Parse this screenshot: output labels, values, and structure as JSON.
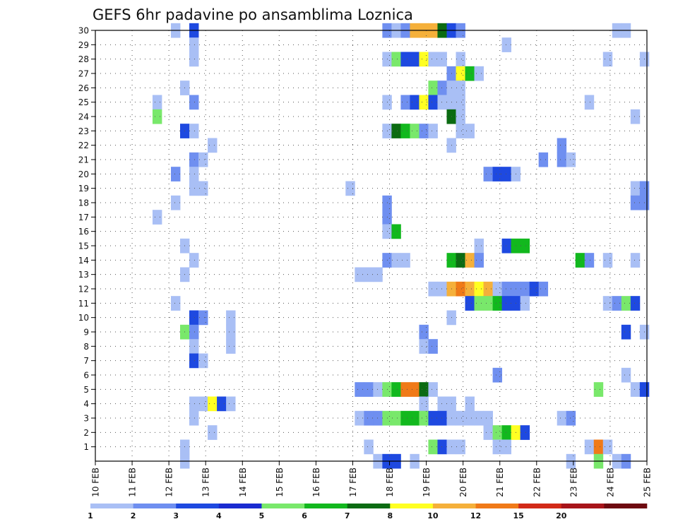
{
  "chart_data": {
    "type": "heatmap",
    "title": "GEFS 6hr padavine po ansamblima Loznica",
    "xlabel": "",
    "ylabel": "",
    "x_tick_labels": [
      "10 FEB",
      "11 FEB",
      "12 FEB",
      "13 FEB",
      "14 FEB",
      "15 FEB",
      "16 FEB",
      "17 FEB",
      "18 FEB",
      "19 FEB",
      "20 FEB",
      "21 FEB",
      "22 FEB",
      "23 FEB",
      "24 FEB",
      "25 FEB"
    ],
    "x_range_days": [
      10,
      25
    ],
    "y_tick_labels": [
      1,
      2,
      3,
      4,
      5,
      6,
      7,
      8,
      9,
      10,
      11,
      12,
      13,
      14,
      15,
      16,
      17,
      18,
      19,
      20,
      21,
      22,
      23,
      24,
      25,
      26,
      27,
      28,
      29,
      30
    ],
    "y_range": [
      0,
      30
    ],
    "grid": true,
    "grid_style": "dotted",
    "legend_position": "bottom colorbar",
    "colorbar": {
      "levels": [
        "1",
        "2",
        "3",
        "4",
        "5",
        "6",
        "7",
        "8",
        "10",
        "12",
        "15",
        "20"
      ],
      "colors": [
        "#a9bff5",
        "#6f8ff0",
        "#1e49e0",
        "#1a2bd0",
        "#79e86b",
        "#12b81e",
        "#0b6b12",
        "#ffff22",
        "#f5b03a",
        "#f07a18",
        "#d22a18",
        "#a8141a",
        "#6e0a10"
      ]
    },
    "cells": [
      [
        12.18,
        30,
        0
      ],
      [
        12.68,
        30,
        2
      ],
      [
        17.93,
        30,
        1
      ],
      [
        18.18,
        30,
        0
      ],
      [
        18.43,
        30,
        1
      ],
      [
        18.68,
        30,
        8
      ],
      [
        18.93,
        30,
        8
      ],
      [
        19.18,
        30,
        8
      ],
      [
        19.43,
        30,
        6
      ],
      [
        19.68,
        30,
        2
      ],
      [
        19.93,
        30,
        1
      ],
      [
        24.18,
        30,
        0
      ],
      [
        24.43,
        30,
        0
      ],
      [
        12.68,
        29,
        0
      ],
      [
        21.18,
        29,
        0
      ],
      [
        12.68,
        28,
        0
      ],
      [
        17.93,
        28,
        0
      ],
      [
        18.18,
        28,
        4
      ],
      [
        18.43,
        28,
        2
      ],
      [
        18.68,
        28,
        2
      ],
      [
        18.93,
        28,
        7
      ],
      [
        19.18,
        28,
        0
      ],
      [
        19.43,
        28,
        0
      ],
      [
        19.93,
        28,
        0
      ],
      [
        23.93,
        28,
        0
      ],
      [
        24.93,
        28,
        0
      ],
      [
        19.68,
        27,
        1
      ],
      [
        19.93,
        27,
        7
      ],
      [
        20.18,
        27,
        5
      ],
      [
        20.43,
        27,
        0
      ],
      [
        12.43,
        26,
        0
      ],
      [
        19.18,
        26,
        4
      ],
      [
        19.43,
        26,
        1
      ],
      [
        19.68,
        26,
        0
      ],
      [
        19.93,
        26,
        0
      ],
      [
        11.68,
        25,
        0
      ],
      [
        12.68,
        25,
        1
      ],
      [
        17.93,
        25,
        0
      ],
      [
        18.43,
        25,
        1
      ],
      [
        18.68,
        25,
        2
      ],
      [
        18.93,
        25,
        7
      ],
      [
        19.18,
        25,
        2
      ],
      [
        19.43,
        25,
        0
      ],
      [
        19.68,
        25,
        0
      ],
      [
        19.93,
        25,
        0
      ],
      [
        23.43,
        25,
        0
      ],
      [
        11.68,
        24,
        4
      ],
      [
        19.68,
        24,
        6
      ],
      [
        19.93,
        24,
        0
      ],
      [
        24.68,
        24,
        0
      ],
      [
        12.43,
        23,
        2
      ],
      [
        12.68,
        23,
        0
      ],
      [
        17.93,
        23,
        0
      ],
      [
        18.18,
        23,
        6
      ],
      [
        18.43,
        23,
        5
      ],
      [
        18.68,
        23,
        4
      ],
      [
        18.93,
        23,
        1
      ],
      [
        19.18,
        23,
        0
      ],
      [
        19.93,
        23,
        0
      ],
      [
        20.18,
        23,
        0
      ],
      [
        13.18,
        22,
        0
      ],
      [
        19.68,
        22,
        0
      ],
      [
        22.68,
        22,
        1
      ],
      [
        12.68,
        21,
        1
      ],
      [
        12.93,
        21,
        0
      ],
      [
        22.18,
        21,
        1
      ],
      [
        22.68,
        21,
        1
      ],
      [
        22.93,
        21,
        0
      ],
      [
        12.18,
        20,
        1
      ],
      [
        12.68,
        20,
        0
      ],
      [
        20.68,
        20,
        1
      ],
      [
        20.93,
        20,
        2
      ],
      [
        21.18,
        20,
        2
      ],
      [
        21.43,
        20,
        0
      ],
      [
        12.68,
        19,
        0
      ],
      [
        12.93,
        19,
        0
      ],
      [
        16.93,
        19,
        0
      ],
      [
        24.68,
        19,
        0
      ],
      [
        24.93,
        19,
        1
      ],
      [
        12.18,
        18,
        0
      ],
      [
        17.93,
        18,
        1
      ],
      [
        24.68,
        18,
        1
      ],
      [
        24.93,
        18,
        1
      ],
      [
        11.68,
        17,
        0
      ],
      [
        17.93,
        17,
        1
      ],
      [
        17.93,
        16,
        0
      ],
      [
        18.18,
        16,
        5
      ],
      [
        12.43,
        15,
        0
      ],
      [
        20.43,
        15,
        0
      ],
      [
        21.18,
        15,
        2
      ],
      [
        21.43,
        15,
        5
      ],
      [
        21.68,
        15,
        5
      ],
      [
        12.68,
        14,
        0
      ],
      [
        17.93,
        14,
        1
      ],
      [
        18.18,
        14,
        0
      ],
      [
        18.43,
        14,
        0
      ],
      [
        19.68,
        14,
        5
      ],
      [
        19.93,
        14,
        6
      ],
      [
        20.18,
        14,
        8
      ],
      [
        20.43,
        14,
        1
      ],
      [
        23.18,
        14,
        5
      ],
      [
        23.43,
        14,
        1
      ],
      [
        23.93,
        14,
        0
      ],
      [
        24.68,
        14,
        0
      ],
      [
        12.43,
        13,
        0
      ],
      [
        17.18,
        13,
        0
      ],
      [
        17.43,
        13,
        0
      ],
      [
        17.68,
        13,
        0
      ],
      [
        19.18,
        12,
        0
      ],
      [
        19.43,
        12,
        0
      ],
      [
        19.68,
        12,
        8
      ],
      [
        19.93,
        12,
        9
      ],
      [
        20.18,
        12,
        8
      ],
      [
        20.43,
        12,
        7
      ],
      [
        20.68,
        12,
        8
      ],
      [
        20.93,
        12,
        0
      ],
      [
        21.18,
        12,
        1
      ],
      [
        21.43,
        12,
        1
      ],
      [
        21.68,
        12,
        1
      ],
      [
        21.93,
        12,
        2
      ],
      [
        22.18,
        12,
        1
      ],
      [
        12.18,
        11,
        0
      ],
      [
        20.18,
        11,
        2
      ],
      [
        20.43,
        11,
        4
      ],
      [
        20.68,
        11,
        4
      ],
      [
        20.93,
        11,
        5
      ],
      [
        21.18,
        11,
        2
      ],
      [
        21.43,
        11,
        2
      ],
      [
        21.68,
        11,
        0
      ],
      [
        23.93,
        11,
        0
      ],
      [
        24.18,
        11,
        1
      ],
      [
        24.43,
        11,
        4
      ],
      [
        24.68,
        11,
        2
      ],
      [
        12.68,
        10,
        2
      ],
      [
        12.93,
        10,
        1
      ],
      [
        13.68,
        10,
        0
      ],
      [
        19.68,
        10,
        0
      ],
      [
        12.43,
        9,
        4
      ],
      [
        12.68,
        9,
        1
      ],
      [
        13.68,
        9,
        0
      ],
      [
        18.93,
        9,
        1
      ],
      [
        24.43,
        9,
        2
      ],
      [
        24.93,
        9,
        0
      ],
      [
        12.68,
        8,
        0
      ],
      [
        13.68,
        8,
        0
      ],
      [
        18.93,
        8,
        0
      ],
      [
        19.18,
        8,
        1
      ],
      [
        12.68,
        7,
        2
      ],
      [
        12.93,
        7,
        0
      ],
      [
        20.93,
        6,
        1
      ],
      [
        24.43,
        6,
        0
      ],
      [
        17.18,
        5,
        1
      ],
      [
        17.43,
        5,
        1
      ],
      [
        17.68,
        5,
        0
      ],
      [
        17.93,
        5,
        4
      ],
      [
        18.18,
        5,
        5
      ],
      [
        18.43,
        5,
        9
      ],
      [
        18.68,
        5,
        9
      ],
      [
        18.93,
        5,
        6
      ],
      [
        19.18,
        5,
        0
      ],
      [
        23.68,
        5,
        4
      ],
      [
        24.68,
        5,
        0
      ],
      [
        24.93,
        5,
        2
      ],
      [
        12.68,
        4,
        0
      ],
      [
        12.93,
        4,
        0
      ],
      [
        13.18,
        4,
        7
      ],
      [
        13.43,
        4,
        2
      ],
      [
        13.68,
        4,
        0
      ],
      [
        18.93,
        4,
        0
      ],
      [
        19.43,
        4,
        0
      ],
      [
        19.68,
        4,
        0
      ],
      [
        20.18,
        4,
        0
      ],
      [
        12.68,
        3,
        0
      ],
      [
        17.18,
        3,
        0
      ],
      [
        17.43,
        3,
        1
      ],
      [
        17.68,
        3,
        1
      ],
      [
        17.93,
        3,
        4
      ],
      [
        18.18,
        3,
        4
      ],
      [
        18.43,
        3,
        5
      ],
      [
        18.68,
        3,
        5
      ],
      [
        18.93,
        3,
        4
      ],
      [
        19.18,
        3,
        2
      ],
      [
        19.43,
        3,
        2
      ],
      [
        19.68,
        3,
        0
      ],
      [
        19.93,
        3,
        0
      ],
      [
        20.18,
        3,
        0
      ],
      [
        20.43,
        3,
        0
      ],
      [
        20.68,
        3,
        0
      ],
      [
        22.68,
        3,
        0
      ],
      [
        22.93,
        3,
        1
      ],
      [
        13.18,
        2,
        0
      ],
      [
        20.68,
        2,
        0
      ],
      [
        20.93,
        2,
        4
      ],
      [
        21.18,
        2,
        5
      ],
      [
        21.43,
        2,
        7
      ],
      [
        21.68,
        2,
        2
      ],
      [
        12.43,
        1,
        0
      ],
      [
        17.43,
        1,
        0
      ],
      [
        19.18,
        1,
        4
      ],
      [
        19.43,
        1,
        2
      ],
      [
        19.68,
        1,
        0
      ],
      [
        19.93,
        1,
        0
      ],
      [
        20.93,
        1,
        0
      ],
      [
        21.18,
        1,
        0
      ],
      [
        23.43,
        1,
        0
      ],
      [
        23.68,
        1,
        9
      ],
      [
        23.93,
        1,
        0
      ],
      [
        12.43,
        0,
        0
      ],
      [
        17.68,
        0,
        0
      ],
      [
        17.93,
        0,
        2
      ],
      [
        18.18,
        0,
        2
      ],
      [
        18.68,
        0,
        0
      ],
      [
        22.93,
        0,
        0
      ],
      [
        23.68,
        0,
        4
      ],
      [
        24.18,
        0,
        0
      ],
      [
        24.43,
        0,
        1
      ]
    ]
  }
}
